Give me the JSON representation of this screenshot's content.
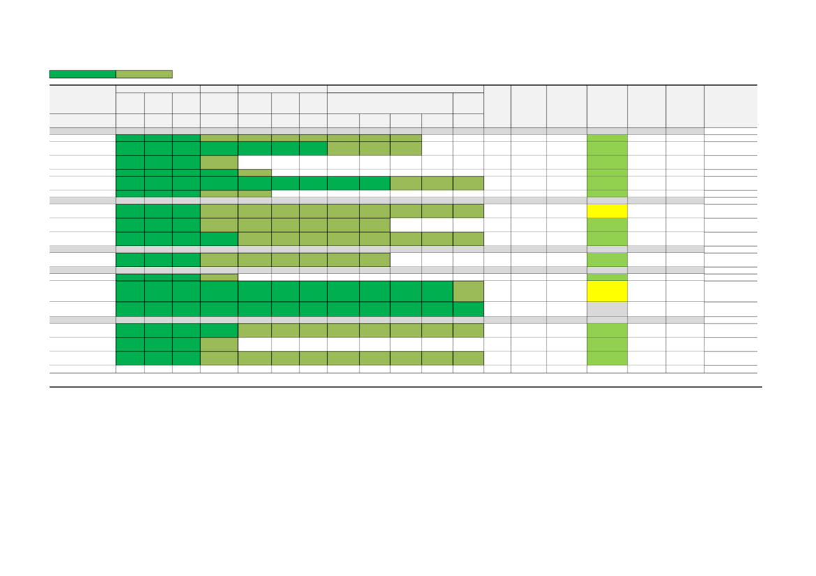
{
  "legend": {
    "colors": [
      "#00b050",
      "#9bbb59"
    ]
  },
  "header": {
    "fill": "#f2f2f2"
  },
  "rows": [
    {
      "cells": [
        "#d9d9d9",
        "#d9d9d9",
        "#d9d9d9",
        "#d9d9d9",
        "#d9d9d9",
        "#d9d9d9",
        "#d9d9d9",
        "#d9d9d9",
        "#d9d9d9",
        "#d9d9d9",
        "#d9d9d9",
        "#d9d9d9"
      ],
      "status": "#d9d9d9",
      "band": "#d9d9d9"
    },
    {
      "cells": [
        "#00b050",
        "#00b050",
        "#00b050",
        "#9bbb59",
        "#9bbb59",
        "#9bbb59",
        "#9bbb59",
        "#9bbb59",
        "#9bbb59",
        "#9bbb59",
        "#ffffff",
        "#ffffff"
      ],
      "status": "#92d050"
    },
    {
      "cells": [
        "#00b050",
        "#00b050",
        "#00b050",
        "#00b050",
        "#00b050",
        "#00b050",
        "#00b050",
        "#9bbb59",
        "#9bbb59",
        "#9bbb59",
        "#ffffff",
        "#ffffff"
      ],
      "status": "#92d050"
    },
    {
      "cells": [
        "#00b050",
        "#00b050",
        "#00b050",
        "#9bbb59",
        "#ffffff",
        "#ffffff",
        "#ffffff",
        "#ffffff",
        "#ffffff",
        "#ffffff",
        "#ffffff",
        "#ffffff"
      ],
      "status": "#92d050"
    },
    {
      "cells": [
        "#00b050",
        "#00b050",
        "#00b050",
        "#00b050",
        "#9bbb59",
        "#ffffff",
        "#ffffff",
        "#ffffff",
        "#ffffff",
        "#ffffff",
        "#ffffff",
        "#ffffff"
      ],
      "status": "#92d050"
    },
    {
      "cells": [
        "#00b050",
        "#00b050",
        "#00b050",
        "#00b050",
        "#00b050",
        "#00b050",
        "#00b050",
        "#00b050",
        "#00b050",
        "#9bbb59",
        "#9bbb59",
        "#9bbb59"
      ],
      "status": "#92d050"
    },
    {
      "cells": [
        "#00b050",
        "#00b050",
        "#00b050",
        "#9bbb59",
        "#9bbb59",
        "#ffffff",
        "#ffffff",
        "#ffffff",
        "#ffffff",
        "#ffffff",
        "#ffffff",
        "#ffffff"
      ],
      "status": "#92d050"
    },
    {
      "cells": [
        "#d9d9d9",
        "#d9d9d9",
        "#d9d9d9",
        "#d9d9d9",
        "#d9d9d9",
        "#d9d9d9",
        "#d9d9d9",
        "#d9d9d9",
        "#d9d9d9",
        "#d9d9d9",
        "#d9d9d9",
        "#d9d9d9"
      ],
      "status": "#d9d9d9",
      "band": "#d9d9d9"
    },
    {
      "cells": [
        "#00b050",
        "#00b050",
        "#00b050",
        "#9bbb59",
        "#9bbb59",
        "#9bbb59",
        "#9bbb59",
        "#9bbb59",
        "#9bbb59",
        "#9bbb59",
        "#9bbb59",
        "#9bbb59"
      ],
      "status": "#ffff00"
    },
    {
      "cells": [
        "#00b050",
        "#00b050",
        "#00b050",
        "#9bbb59",
        "#9bbb59",
        "#9bbb59",
        "#9bbb59",
        "#9bbb59",
        "#9bbb59",
        "#ffffff",
        "#ffffff",
        "#ffffff"
      ],
      "status": "#92d050"
    },
    {
      "cells": [
        "#00b050",
        "#00b050",
        "#00b050",
        "#00b050",
        "#9bbb59",
        "#9bbb59",
        "#9bbb59",
        "#9bbb59",
        "#9bbb59",
        "#9bbb59",
        "#9bbb59",
        "#9bbb59"
      ],
      "status": "#92d050"
    },
    {
      "cells": [
        "#d9d9d9",
        "#d9d9d9",
        "#d9d9d9",
        "#d9d9d9",
        "#d9d9d9",
        "#d9d9d9",
        "#d9d9d9",
        "#d9d9d9",
        "#d9d9d9",
        "#d9d9d9",
        "#d9d9d9",
        "#d9d9d9"
      ],
      "status": "#d9d9d9",
      "band": "#d9d9d9"
    },
    {
      "cells": [
        "#00b050",
        "#00b050",
        "#00b050",
        "#9bbb59",
        "#9bbb59",
        "#9bbb59",
        "#9bbb59",
        "#9bbb59",
        "#9bbb59",
        "#ffffff",
        "#ffffff",
        "#ffffff"
      ],
      "status": "#92d050"
    },
    {
      "cells": [
        "#d9d9d9",
        "#d9d9d9",
        "#d9d9d9",
        "#d9d9d9",
        "#d9d9d9",
        "#d9d9d9",
        "#d9d9d9",
        "#d9d9d9",
        "#d9d9d9",
        "#d9d9d9",
        "#d9d9d9",
        "#d9d9d9"
      ],
      "status": "#d9d9d9",
      "band": "#d9d9d9"
    },
    {
      "cells": [
        "#00b050",
        "#00b050",
        "#00b050",
        "#9bbb59",
        "#ffffff",
        "#ffffff",
        "#ffffff",
        "#ffffff",
        "#ffffff",
        "#ffffff",
        "#ffffff",
        "#ffffff"
      ],
      "status": "#92d050"
    },
    {
      "cells": [
        "#00b050",
        "#00b050",
        "#00b050",
        "#00b050",
        "#00b050",
        "#00b050",
        "#00b050",
        "#00b050",
        "#00b050",
        "#00b050",
        "#00b050",
        "#9bbb59"
      ],
      "status": "#ffff00"
    },
    {
      "cells": [
        "#00b050",
        "#00b050",
        "#00b050",
        "#00b050",
        "#00b050",
        "#00b050",
        "#00b050",
        "#00b050",
        "#00b050",
        "#00b050",
        "#00b050",
        "#00b050"
      ],
      "status": "#d9d9d9"
    },
    {
      "cells": [
        "#d9d9d9",
        "#d9d9d9",
        "#d9d9d9",
        "#d9d9d9",
        "#d9d9d9",
        "#d9d9d9",
        "#d9d9d9",
        "#d9d9d9",
        "#d9d9d9",
        "#d9d9d9",
        "#d9d9d9",
        "#d9d9d9"
      ],
      "status": "#d9d9d9",
      "band": "#d9d9d9"
    },
    {
      "cells": [
        "#00b050",
        "#00b050",
        "#00b050",
        "#00b050",
        "#9bbb59",
        "#9bbb59",
        "#9bbb59",
        "#9bbb59",
        "#9bbb59",
        "#9bbb59",
        "#9bbb59",
        "#9bbb59"
      ],
      "status": "#92d050"
    },
    {
      "cells": [
        "#00b050",
        "#00b050",
        "#00b050",
        "#9bbb59",
        "#ffffff",
        "#ffffff",
        "#ffffff",
        "#ffffff",
        "#ffffff",
        "#ffffff",
        "#ffffff",
        "#ffffff"
      ],
      "status": "#92d050"
    },
    {
      "cells": [
        "#00b050",
        "#00b050",
        "#00b050",
        "#9bbb59",
        "#9bbb59",
        "#9bbb59",
        "#9bbb59",
        "#9bbb59",
        "#9bbb59",
        "#9bbb59",
        "#9bbb59",
        "#9bbb59"
      ],
      "status": "#92d050"
    },
    {
      "cells": [
        "#ffffff",
        "#ffffff",
        "#ffffff",
        "#ffffff",
        "#ffffff",
        "#ffffff",
        "#ffffff",
        "#ffffff",
        "#ffffff",
        "#ffffff",
        "#ffffff",
        "#ffffff"
      ],
      "status": "#ffffff"
    }
  ]
}
